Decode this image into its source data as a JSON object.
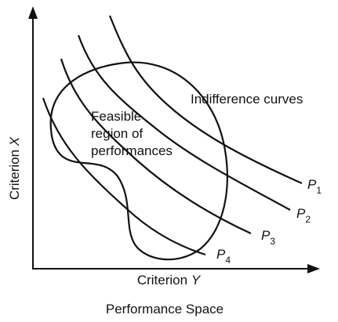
{
  "axes": {
    "x_label": {
      "text": "Criterion",
      "variable": "Y"
    },
    "y_label": {
      "text": "Criterion",
      "variable": "X"
    }
  },
  "curves_label": "Indifference curves",
  "region_label": [
    "Feasible",
    "region of",
    "performances"
  ],
  "curves": [
    {
      "letter": "P",
      "subscript": "1"
    },
    {
      "letter": "P",
      "subscript": "2"
    },
    {
      "letter": "P",
      "subscript": "3"
    },
    {
      "letter": "P",
      "subscript": "4"
    }
  ],
  "caption": "Performance Space"
}
